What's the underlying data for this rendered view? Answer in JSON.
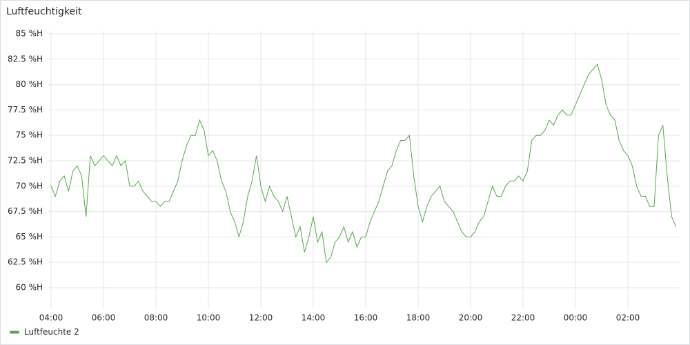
{
  "chart_data": {
    "type": "line",
    "title": "Luftfeuchtigkeit",
    "x": [
      "04:00",
      "04:10",
      "04:20",
      "04:30",
      "04:40",
      "04:50",
      "05:00",
      "05:10",
      "05:20",
      "05:30",
      "05:40",
      "05:50",
      "06:00",
      "06:10",
      "06:20",
      "06:30",
      "06:40",
      "06:50",
      "07:00",
      "07:10",
      "07:20",
      "07:30",
      "07:40",
      "07:50",
      "08:00",
      "08:10",
      "08:20",
      "08:30",
      "08:40",
      "08:50",
      "09:00",
      "09:10",
      "09:20",
      "09:30",
      "09:40",
      "09:50",
      "10:00",
      "10:10",
      "10:20",
      "10:30",
      "10:40",
      "10:50",
      "11:00",
      "11:10",
      "11:20",
      "11:30",
      "11:40",
      "11:50",
      "12:00",
      "12:10",
      "12:20",
      "12:30",
      "12:40",
      "12:50",
      "13:00",
      "13:10",
      "13:20",
      "13:30",
      "13:40",
      "13:50",
      "14:00",
      "14:10",
      "14:20",
      "14:30",
      "14:40",
      "14:50",
      "15:00",
      "15:10",
      "15:20",
      "15:30",
      "15:40",
      "15:50",
      "16:00",
      "16:10",
      "16:20",
      "16:30",
      "16:40",
      "16:50",
      "17:00",
      "17:10",
      "17:20",
      "17:30",
      "17:40",
      "17:50",
      "18:00",
      "18:10",
      "18:20",
      "18:30",
      "18:40",
      "18:50",
      "19:00",
      "19:10",
      "19:20",
      "19:30",
      "19:40",
      "19:50",
      "20:00",
      "20:10",
      "20:20",
      "20:30",
      "20:40",
      "20:50",
      "21:00",
      "21:10",
      "21:20",
      "21:30",
      "21:40",
      "21:50",
      "22:00",
      "22:10",
      "22:20",
      "22:30",
      "22:40",
      "22:50",
      "23:00",
      "23:10",
      "23:20",
      "23:30",
      "23:40",
      "23:50",
      "00:00",
      "00:10",
      "00:20",
      "00:30",
      "00:40",
      "00:50",
      "01:00",
      "01:10",
      "01:20",
      "01:30",
      "01:40",
      "01:50",
      "02:00",
      "02:10",
      "02:20",
      "02:30",
      "02:40",
      "02:50",
      "03:00",
      "03:10",
      "03:20",
      "03:30",
      "03:40",
      "03:50"
    ],
    "series": [
      {
        "name": "Luftfeuchte 2",
        "color": "#56a64b",
        "values": [
          70,
          69,
          70.5,
          71,
          69.5,
          71.5,
          72,
          71,
          67,
          73,
          72,
          72.5,
          73,
          72.5,
          72,
          73,
          72,
          72.5,
          70,
          70,
          70.5,
          69.5,
          69,
          68.5,
          68.5,
          68,
          68.5,
          68.5,
          69.5,
          70.5,
          72.5,
          74,
          75,
          75,
          76.5,
          75.5,
          73,
          73.5,
          72.5,
          70.5,
          69.5,
          67.5,
          66.5,
          65,
          66.5,
          69,
          70.5,
          73,
          70,
          68.5,
          70,
          69,
          68.5,
          67.5,
          69,
          67,
          65,
          66,
          63.5,
          65,
          67,
          64.5,
          65.5,
          62.5,
          63,
          64.5,
          65,
          66,
          64.5,
          65.5,
          64,
          65,
          65,
          66.5,
          67.5,
          68.5,
          70,
          71.5,
          72,
          73.5,
          74.5,
          74.5,
          75,
          71,
          68,
          66.5,
          68,
          69,
          69.5,
          70,
          68.5,
          68,
          67.5,
          66.5,
          65.5,
          65,
          65,
          65.5,
          66.5,
          67,
          68.5,
          70,
          69,
          69,
          70,
          70.5,
          70.5,
          71,
          70.5,
          71.5,
          74.5,
          75,
          75,
          75.5,
          76.5,
          76,
          77,
          77.5,
          77,
          77,
          78,
          79,
          80,
          81,
          81.5,
          82,
          80.5,
          78,
          77,
          76.5,
          74.5,
          73.5,
          73,
          72,
          70,
          69,
          69,
          68,
          68,
          75,
          76,
          71,
          67,
          66
        ]
      }
    ],
    "xticks": [
      "04:00",
      "06:00",
      "08:00",
      "10:00",
      "12:00",
      "14:00",
      "16:00",
      "18:00",
      "20:00",
      "22:00",
      "00:00",
      "02:00"
    ],
    "ylim": [
      58,
      85
    ],
    "yticks": [
      {
        "value": 60,
        "label": "60 %H"
      },
      {
        "value": 62.5,
        "label": "62.5 %H"
      },
      {
        "value": 65,
        "label": "65 %H"
      },
      {
        "value": 67.5,
        "label": "67.5 %H"
      },
      {
        "value": 70,
        "label": "70 %H"
      },
      {
        "value": 72.5,
        "label": "72.5 %H"
      },
      {
        "value": 75,
        "label": "75 %H"
      },
      {
        "value": 77.5,
        "label": "77.5 %H"
      },
      {
        "value": 80,
        "label": "80 %H"
      },
      {
        "value": 82.5,
        "label": "82.5 %H"
      },
      {
        "value": 85,
        "label": "85 %H"
      }
    ],
    "grid": true
  }
}
